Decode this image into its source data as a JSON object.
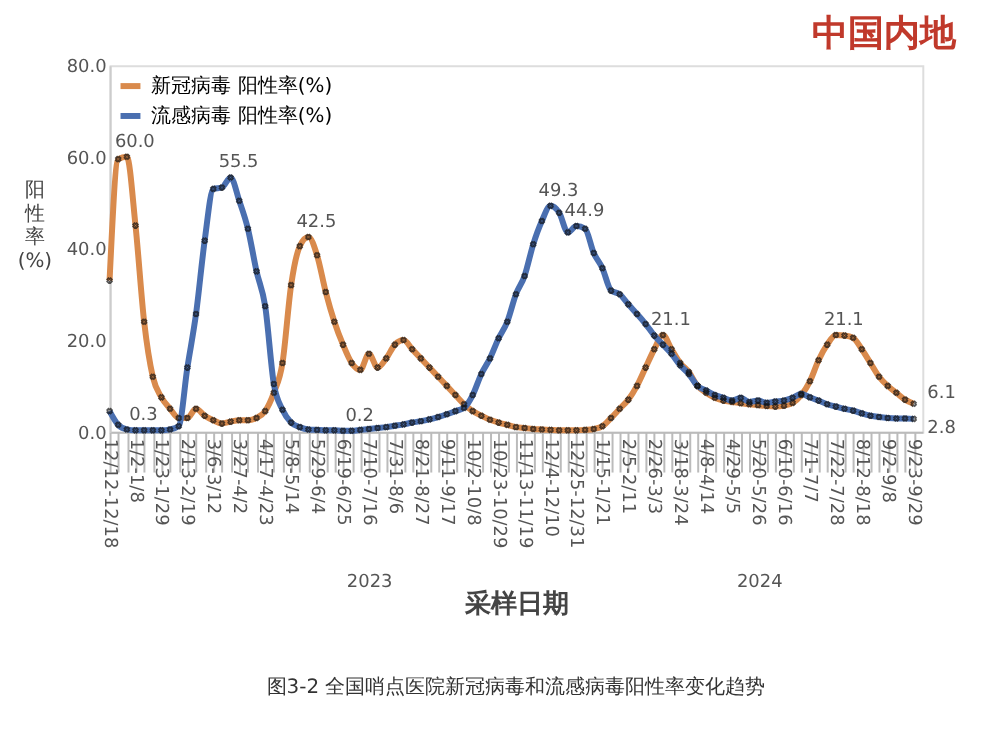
{
  "chart_data": {
    "type": "line",
    "title": "中国内地",
    "xlabel": "采样日期",
    "ylabel": "阳性率(%)",
    "categories": [
      "12/12-12/18",
      null,
      null,
      "1/2-1/8",
      null,
      null,
      "1/23-1/29",
      null,
      null,
      "2/13-2/19",
      null,
      null,
      "3/6-3/12",
      null,
      null,
      "3/27-4/2",
      null,
      null,
      "4/17-4/23",
      null,
      null,
      "5/8-5/14",
      null,
      null,
      "5/29-6/4",
      null,
      null,
      "6/19-6/25",
      null,
      null,
      "7/10-7/16",
      null,
      null,
      "7/31-8/6",
      null,
      null,
      "8/21-8/27",
      null,
      null,
      "9/11-9/17",
      null,
      null,
      "10/2-10/8",
      null,
      null,
      "10/23-10/29",
      null,
      null,
      "11/13-11/19",
      null,
      null,
      "12/4-12/10",
      null,
      null,
      "12/25-12/31",
      null,
      null,
      "1/15-1/21",
      null,
      null,
      "2/5-2/11",
      null,
      null,
      "2/26-3/3",
      null,
      null,
      "3/18-3/24",
      null,
      null,
      "4/8-4/14",
      null,
      null,
      "4/29-5/5",
      null,
      null,
      "5/20-5/26",
      null,
      null,
      "6/10-6/16",
      null,
      null,
      "7/1-7/7",
      null,
      null,
      "7/22-7/28",
      null,
      null,
      "8/12-8/18",
      null,
      null,
      "9/2-9/8",
      null,
      null,
      "9/23-9/29"
    ],
    "series": [
      {
        "name": "新冠病毒 阳性率(%)",
        "color": "#d98a4c",
        "values": [
          33,
          59.5,
          60.0,
          45,
          24,
          12,
          7.5,
          5,
          3,
          3,
          5,
          3.5,
          2.5,
          1.8,
          2.2,
          2.5,
          2.5,
          3,
          4.5,
          8.5,
          15,
          32,
          40.5,
          42.5,
          38.5,
          30.5,
          24,
          19,
          15,
          13.5,
          17,
          14,
          16,
          19,
          20,
          18,
          16,
          14,
          12,
          10,
          8,
          6,
          4.5,
          3.5,
          2.6,
          2,
          1.5,
          1,
          0.8,
          0.6,
          0.5,
          0.4,
          0.3,
          0.3,
          0.3,
          0.4,
          0.6,
          1.2,
          3,
          5,
          7,
          10,
          14,
          18,
          21.1,
          18,
          15,
          13,
          10,
          8.5,
          7.4,
          6.8,
          6.5,
          6.2,
          6,
          5.8,
          5.6,
          5.5,
          5.7,
          6.3,
          8,
          11,
          15.6,
          19,
          21.1,
          21,
          20.5,
          18,
          15,
          12,
          10,
          8.5,
          7,
          6.1
        ],
        "value_labels": [
          null,
          null,
          "60.0",
          null,
          null,
          null,
          null,
          null,
          null,
          null,
          null,
          null,
          null,
          null,
          null,
          null,
          null,
          null,
          null,
          null,
          null,
          null,
          null,
          "42.5",
          null,
          null,
          null,
          null,
          null,
          null,
          null,
          null,
          null,
          null,
          null,
          null,
          null,
          null,
          null,
          null,
          null,
          null,
          null,
          null,
          null,
          null,
          null,
          null,
          null,
          null,
          null,
          null,
          null,
          null,
          null,
          null,
          null,
          null,
          null,
          null,
          null,
          null,
          null,
          null,
          "21.1",
          null,
          null,
          null,
          null,
          null,
          null,
          null,
          null,
          null,
          null,
          null,
          null,
          null,
          null,
          null,
          null,
          null,
          null,
          null,
          "21.1",
          null,
          null,
          null,
          null,
          null,
          null,
          null,
          null,
          "6.1"
        ]
      },
      {
        "name": "流感病毒 阳性率(%)",
        "color": "#4a6fb0",
        "values": [
          4.5,
          1.5,
          0.5,
          0.3,
          0.3,
          0.3,
          0.3,
          0.5,
          1.2,
          14,
          25.7,
          41.7,
          53,
          53.3,
          55.5,
          50.4,
          44.3,
          35,
          27.4,
          10.4,
          4.8,
          2,
          1,
          0.5,
          0.4,
          0.3,
          0.3,
          0.2,
          0.2,
          0.4,
          0.6,
          0.8,
          1,
          1.3,
          1.6,
          2,
          2.3,
          2.7,
          3.2,
          3.8,
          4.5,
          5.2,
          8,
          12.6,
          16,
          20.4,
          24,
          30,
          34,
          40.9,
          46,
          49.3,
          47.8,
          43.5,
          44.9,
          44.3,
          39,
          35.7,
          30.8,
          30,
          27.8,
          25.7,
          23.5,
          21,
          19,
          17,
          14.5,
          12.6,
          10,
          9,
          8,
          7.4,
          6.8,
          7.4,
          6.5,
          6.8,
          6.3,
          6.6,
          6.8,
          7.4,
          8.3,
          7.5,
          6.8,
          6,
          5.5,
          5,
          4.6,
          4,
          3.5,
          3.2,
          3,
          2.9,
          2.9,
          2.8
        ],
        "value_labels": [
          null,
          null,
          null,
          "0.3",
          null,
          null,
          null,
          null,
          null,
          null,
          null,
          null,
          null,
          null,
          "55.5",
          null,
          null,
          null,
          null,
          null,
          null,
          null,
          null,
          null,
          null,
          null,
          null,
          null,
          "0.2",
          null,
          null,
          null,
          null,
          null,
          null,
          null,
          null,
          null,
          null,
          null,
          null,
          null,
          null,
          null,
          null,
          null,
          null,
          null,
          null,
          null,
          null,
          "49.3",
          null,
          null,
          "44.9",
          null,
          null,
          null,
          null,
          null,
          null,
          null,
          null,
          null,
          null,
          null,
          null,
          null,
          null,
          null,
          null,
          null,
          null,
          null,
          null,
          null,
          null,
          null,
          null,
          null,
          null,
          null,
          null,
          null,
          null,
          null,
          null,
          null,
          null,
          null,
          null,
          null,
          null,
          "2.8"
        ]
      }
    ],
    "ylim": [
      0,
      80
    ],
    "yticks": [
      {
        "value": 0,
        "label": "0.0"
      },
      {
        "value": 20,
        "label": "20.0"
      },
      {
        "value": 40,
        "label": "40.0"
      },
      {
        "value": 60,
        "label": "60.0"
      },
      {
        "value": 80,
        "label": "80.0"
      }
    ],
    "marker": "cross",
    "legend": "top left",
    "grid": false,
    "annotations": [
      "2023",
      "2024",
      "图3-2 全国哨点医院新冠病毒和流感病毒阳性率变化趋势"
    ]
  }
}
